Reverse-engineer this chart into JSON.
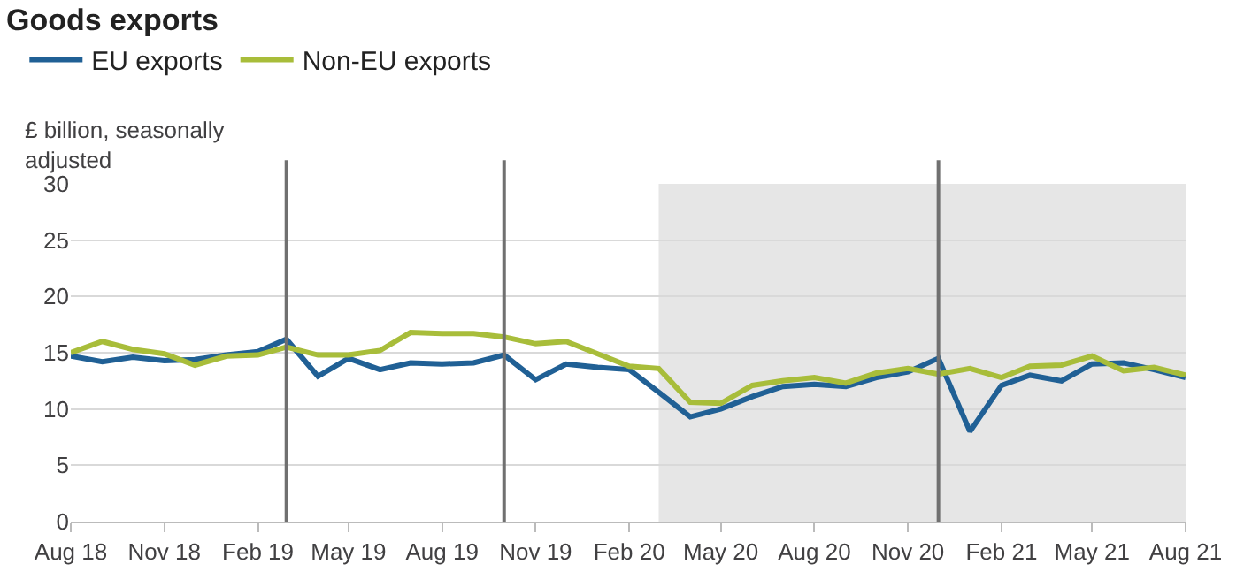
{
  "chart_data": {
    "type": "line",
    "title": "Goods exports",
    "ylabel": "£ billion, seasonally adjusted",
    "x": [
      "2018-08",
      "2018-09",
      "2018-10",
      "2018-11",
      "2018-12",
      "2019-01",
      "2019-02",
      "2019-03",
      "2019-04",
      "2019-05",
      "2019-06",
      "2019-07",
      "2019-08",
      "2019-09",
      "2019-10",
      "2019-11",
      "2019-12",
      "2020-01",
      "2020-02",
      "2020-03",
      "2020-04",
      "2020-05",
      "2020-06",
      "2020-07",
      "2020-08",
      "2020-09",
      "2020-10",
      "2020-11",
      "2020-12",
      "2021-01",
      "2021-02",
      "2021-03",
      "2021-04",
      "2021-05",
      "2021-06",
      "2021-07",
      "2021-08"
    ],
    "series": [
      {
        "name": "EU exports",
        "color": "#206095",
        "values": [
          14.7,
          14.2,
          14.6,
          14.3,
          14.4,
          14.8,
          15.1,
          16.2,
          12.9,
          14.5,
          13.5,
          14.1,
          14.0,
          14.1,
          14.8,
          12.6,
          14.0,
          13.7,
          13.5,
          11.5,
          9.3,
          10.0,
          11.1,
          12.0,
          12.2,
          12.0,
          12.8,
          13.3,
          14.5,
          8.0,
          12.1,
          13.0,
          12.5,
          14.0,
          14.1,
          13.5,
          12.8
        ]
      },
      {
        "name": "Non-EU exports",
        "color": "#a8bd3a",
        "values": [
          15.0,
          16.0,
          15.3,
          14.9,
          13.9,
          14.7,
          14.8,
          15.5,
          14.8,
          14.8,
          15.2,
          16.8,
          16.7,
          16.7,
          16.4,
          15.8,
          16.0,
          14.9,
          13.8,
          13.6,
          10.6,
          10.5,
          12.1,
          12.5,
          12.8,
          12.3,
          13.2,
          13.6,
          13.1,
          13.6,
          12.8,
          13.8,
          13.9,
          14.7,
          13.4,
          13.7,
          13.0
        ]
      }
    ],
    "xlim": [
      "2018-08",
      "2021-08"
    ],
    "xticks": [
      {
        "value": "2018-08",
        "label": "Aug 18"
      },
      {
        "value": "2018-11",
        "label": "Nov 18"
      },
      {
        "value": "2019-02",
        "label": "Feb 19"
      },
      {
        "value": "2019-05",
        "label": "May 19"
      },
      {
        "value": "2019-08",
        "label": "Aug 19"
      },
      {
        "value": "2019-11",
        "label": "Nov 19"
      },
      {
        "value": "2020-02",
        "label": "Feb 20"
      },
      {
        "value": "2020-05",
        "label": "May 20"
      },
      {
        "value": "2020-08",
        "label": "Aug 20"
      },
      {
        "value": "2020-11",
        "label": "Nov 20"
      },
      {
        "value": "2021-02",
        "label": "Feb 21"
      },
      {
        "value": "2021-05",
        "label": "May 21"
      },
      {
        "value": "2021-08",
        "label": "Aug 21"
      }
    ],
    "ylim": [
      0,
      30
    ],
    "yticks": [
      0,
      5,
      10,
      15,
      20,
      25,
      30
    ],
    "ref_lines": [
      {
        "axis": "x",
        "value": "2019-03",
        "color": "#707070"
      },
      {
        "axis": "x",
        "value": "2019-10",
        "color": "#707070"
      },
      {
        "axis": "x",
        "value": "2020-12",
        "color": "#707070"
      }
    ],
    "bands": [
      {
        "axis": "x",
        "from": "2020-03",
        "to": "2021-08",
        "color": "#e6e6e6"
      }
    ],
    "grid": "y",
    "legend": "top left",
    "marker": "none",
    "line_style": "solid"
  }
}
